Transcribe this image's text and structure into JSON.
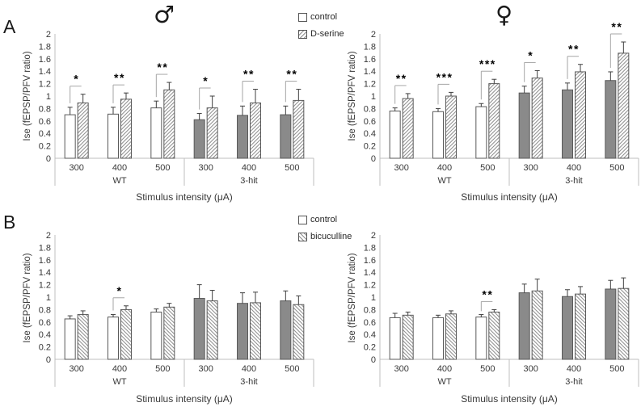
{
  "figure": {
    "panel_a_label": "A",
    "panel_b_label": "B",
    "male_symbol": "♂",
    "female_symbol": "♀",
    "colors": {
      "axis": "#bfbfbf",
      "bar_border": "#595959",
      "gray_fill": "#8a8a8a",
      "hatch_line": "#8f8f8f",
      "error_bar": "#3f3f3f",
      "bracket": "#a6a6a6",
      "text": "#383838",
      "significance": "#000000"
    }
  },
  "axes": {
    "ylabel": "Ise (fEPSP/PFV ratio)",
    "xlabel": "Stimulus intensity (μA)",
    "yticks": [
      "0",
      "0.2",
      "0.4",
      "0.6",
      "0.8",
      "1",
      "1.2",
      "1.4",
      "1.6",
      "1.8",
      "2"
    ],
    "ylim": [
      0,
      2
    ]
  },
  "legends": {
    "a": [
      {
        "label": "control",
        "swatch": "plain"
      },
      {
        "label": "D-serine",
        "swatch": "hatch-forward"
      }
    ],
    "b": [
      {
        "label": "control",
        "swatch": "plain"
      },
      {
        "label": "bicuculline",
        "swatch": "hatch-backward"
      }
    ]
  },
  "chart_data": [
    {
      "id": "a-male",
      "type": "bar",
      "panel": "A",
      "sex": "male",
      "title": "♂",
      "ylabel": "Ise (fEPSP/PFV ratio)",
      "xlabel": "Stimulus intensity (μA)",
      "ylim": [
        0,
        2
      ],
      "ytick_interval": 0.2,
      "groups": [
        "WT",
        "3-hit"
      ],
      "categories": [
        "300",
        "400",
        "500",
        "300",
        "400",
        "500"
      ],
      "series": [
        {
          "name": "control",
          "pattern": "solid",
          "fill": [
            "white",
            "white",
            "white",
            "gray",
            "gray",
            "gray"
          ],
          "values": [
            0.7,
            0.71,
            0.81,
            0.62,
            0.69,
            0.7
          ],
          "errors": [
            0.12,
            0.11,
            0.11,
            0.1,
            0.15,
            0.14
          ]
        },
        {
          "name": "D-serine",
          "pattern": "hatch-forward",
          "fill": [
            "hatch",
            "hatch",
            "hatch",
            "hatch",
            "hatch",
            "hatch"
          ],
          "values": [
            0.89,
            0.95,
            1.1,
            0.81,
            0.89,
            0.93
          ],
          "errors": [
            0.14,
            0.1,
            0.12,
            0.19,
            0.22,
            0.18
          ]
        }
      ],
      "significance": [
        "*",
        "**",
        "**",
        "*",
        "**",
        "**"
      ]
    },
    {
      "id": "a-female",
      "type": "bar",
      "panel": "A",
      "sex": "female",
      "title": "♀",
      "ylabel": "Ise (fEPSP/PFV ratio)",
      "xlabel": "Stimulus intensity (μA)",
      "ylim": [
        0,
        2
      ],
      "ytick_interval": 0.2,
      "groups": [
        "WT",
        "3-hit"
      ],
      "categories": [
        "300",
        "400",
        "500",
        "300",
        "400",
        "500"
      ],
      "series": [
        {
          "name": "control",
          "pattern": "solid",
          "fill": [
            "white",
            "white",
            "white",
            "gray",
            "gray",
            "gray"
          ],
          "values": [
            0.76,
            0.75,
            0.83,
            1.05,
            1.1,
            1.25
          ],
          "errors": [
            0.05,
            0.05,
            0.05,
            0.11,
            0.11,
            0.14
          ]
        },
        {
          "name": "D-serine",
          "pattern": "hatch-forward",
          "fill": [
            "hatch",
            "hatch",
            "hatch",
            "hatch",
            "hatch",
            "hatch"
          ],
          "values": [
            0.96,
            1.0,
            1.2,
            1.29,
            1.39,
            1.69
          ],
          "errors": [
            0.08,
            0.06,
            0.07,
            0.12,
            0.12,
            0.18
          ]
        }
      ],
      "significance": [
        "**",
        "***",
        "***",
        "*",
        "**",
        "**"
      ]
    },
    {
      "id": "b-male",
      "type": "bar",
      "panel": "B",
      "sex": "male",
      "title": "♂",
      "ylabel": "Ise (fEPSP/PFV ratio)",
      "xlabel": "Stimulus intensity (μA)",
      "ylim": [
        0,
        2
      ],
      "ytick_interval": 0.2,
      "groups": [
        "WT",
        "3-hit"
      ],
      "categories": [
        "300",
        "400",
        "500",
        "300",
        "400",
        "500"
      ],
      "series": [
        {
          "name": "control",
          "pattern": "solid",
          "fill": [
            "white",
            "white",
            "white",
            "gray",
            "gray",
            "gray"
          ],
          "values": [
            0.65,
            0.68,
            0.76,
            0.98,
            0.9,
            0.94
          ],
          "errors": [
            0.05,
            0.04,
            0.05,
            0.22,
            0.17,
            0.16
          ]
        },
        {
          "name": "bicuculline",
          "pattern": "hatch-backward",
          "fill": [
            "hatch",
            "hatch",
            "hatch",
            "hatch",
            "hatch",
            "hatch"
          ],
          "values": [
            0.72,
            0.8,
            0.84,
            0.94,
            0.91,
            0.88
          ],
          "errors": [
            0.06,
            0.06,
            0.06,
            0.17,
            0.17,
            0.14
          ]
        }
      ],
      "significance": [
        null,
        "*",
        null,
        null,
        null,
        null
      ]
    },
    {
      "id": "b-female",
      "type": "bar",
      "panel": "B",
      "sex": "female",
      "title": "♀",
      "ylabel": "Ise (fEPSP/PFV ratio)",
      "xlabel": "Stimulus intensity (μA)",
      "ylim": [
        0,
        2
      ],
      "ytick_interval": 0.2,
      "groups": [
        "WT",
        "3-hit"
      ],
      "categories": [
        "300",
        "400",
        "500",
        "300",
        "400",
        "500"
      ],
      "series": [
        {
          "name": "control",
          "pattern": "solid",
          "fill": [
            "white",
            "white",
            "white",
            "gray",
            "gray",
            "gray"
          ],
          "values": [
            0.67,
            0.67,
            0.68,
            1.07,
            1.01,
            1.13
          ],
          "errors": [
            0.07,
            0.04,
            0.04,
            0.14,
            0.11,
            0.14
          ]
        },
        {
          "name": "bicuculline",
          "pattern": "hatch-backward",
          "fill": [
            "hatch",
            "hatch",
            "hatch",
            "hatch",
            "hatch",
            "hatch"
          ],
          "values": [
            0.71,
            0.73,
            0.76,
            1.1,
            1.05,
            1.14
          ],
          "errors": [
            0.05,
            0.05,
            0.04,
            0.19,
            0.12,
            0.17
          ]
        }
      ],
      "significance": [
        null,
        null,
        "**",
        null,
        null,
        null
      ]
    }
  ]
}
